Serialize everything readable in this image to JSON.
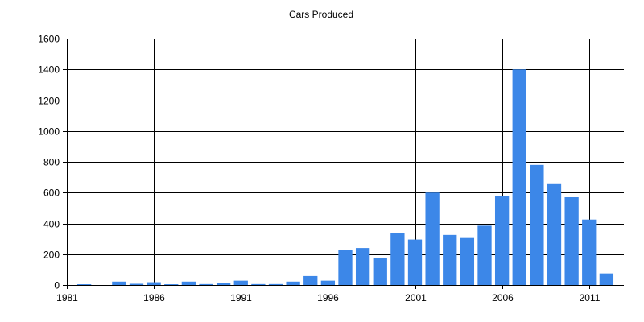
{
  "chart_data": {
    "type": "bar",
    "title": "Cars Produced",
    "xlabel": "",
    "ylabel": "",
    "x": [
      1982,
      1983,
      1984,
      1985,
      1986,
      1987,
      1988,
      1989,
      1990,
      1991,
      1992,
      1993,
      1994,
      1995,
      1996,
      1997,
      1998,
      1999,
      2000,
      2001,
      2002,
      2003,
      2004,
      2005,
      2006,
      2007,
      2008,
      2009,
      2010,
      2011,
      2012
    ],
    "values": [
      5,
      0,
      22,
      8,
      18,
      5,
      22,
      6,
      12,
      28,
      6,
      6,
      22,
      58,
      28,
      225,
      240,
      175,
      335,
      295,
      600,
      325,
      305,
      385,
      580,
      1400,
      780,
      660,
      570,
      425,
      75
    ],
    "xlim": [
      1981,
      2013
    ],
    "ylim": [
      0,
      1600
    ],
    "x_ticks": [
      "1981",
      "1986",
      "1991",
      "1996",
      "2001",
      "2006",
      "2011"
    ],
    "y_ticks": [
      "0",
      "200",
      "400",
      "600",
      "800",
      "1000",
      "1200",
      "1400",
      "1600"
    ],
    "grid": true,
    "legend": "none",
    "bar_color": "#3c87e8"
  }
}
